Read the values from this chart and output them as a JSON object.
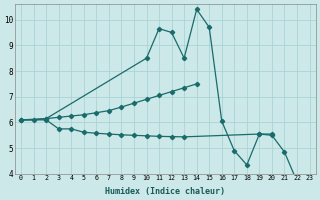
{
  "xlabel": "Humidex (Indice chaleur)",
  "background_color": "#cce8e8",
  "grid_color": "#aad4d4",
  "line_color": "#1a6b6b",
  "ylim": [
    4,
    10.6
  ],
  "yticks": [
    4,
    5,
    6,
    7,
    8,
    9,
    10
  ],
  "xlim": [
    -0.5,
    23.5
  ],
  "line1_x": [
    0,
    2,
    3,
    4,
    5,
    6,
    7,
    8,
    9,
    10,
    11,
    12,
    13,
    14
  ],
  "line1_y": [
    6.1,
    6.15,
    6.2,
    6.25,
    6.3,
    6.38,
    6.46,
    6.6,
    6.75,
    6.9,
    7.05,
    7.2,
    7.35,
    7.5
  ],
  "line2_x": [
    0,
    1,
    2,
    10,
    11,
    12,
    13,
    14,
    15,
    16,
    17,
    18,
    19,
    20,
    21,
    22,
    23
  ],
  "line2_y": [
    6.1,
    6.1,
    6.15,
    8.5,
    9.65,
    9.5,
    8.5,
    10.4,
    9.7,
    6.05,
    4.9,
    4.35,
    5.55,
    5.5,
    4.85,
    3.7,
    3.65
  ],
  "line3_x": [
    0,
    2,
    3,
    4,
    5,
    6,
    7,
    8,
    9,
    10,
    11,
    12,
    13,
    19,
    20
  ],
  "line3_y": [
    6.1,
    6.1,
    5.75,
    5.75,
    5.62,
    5.58,
    5.55,
    5.52,
    5.5,
    5.48,
    5.46,
    5.45,
    5.44,
    5.55,
    5.55
  ]
}
